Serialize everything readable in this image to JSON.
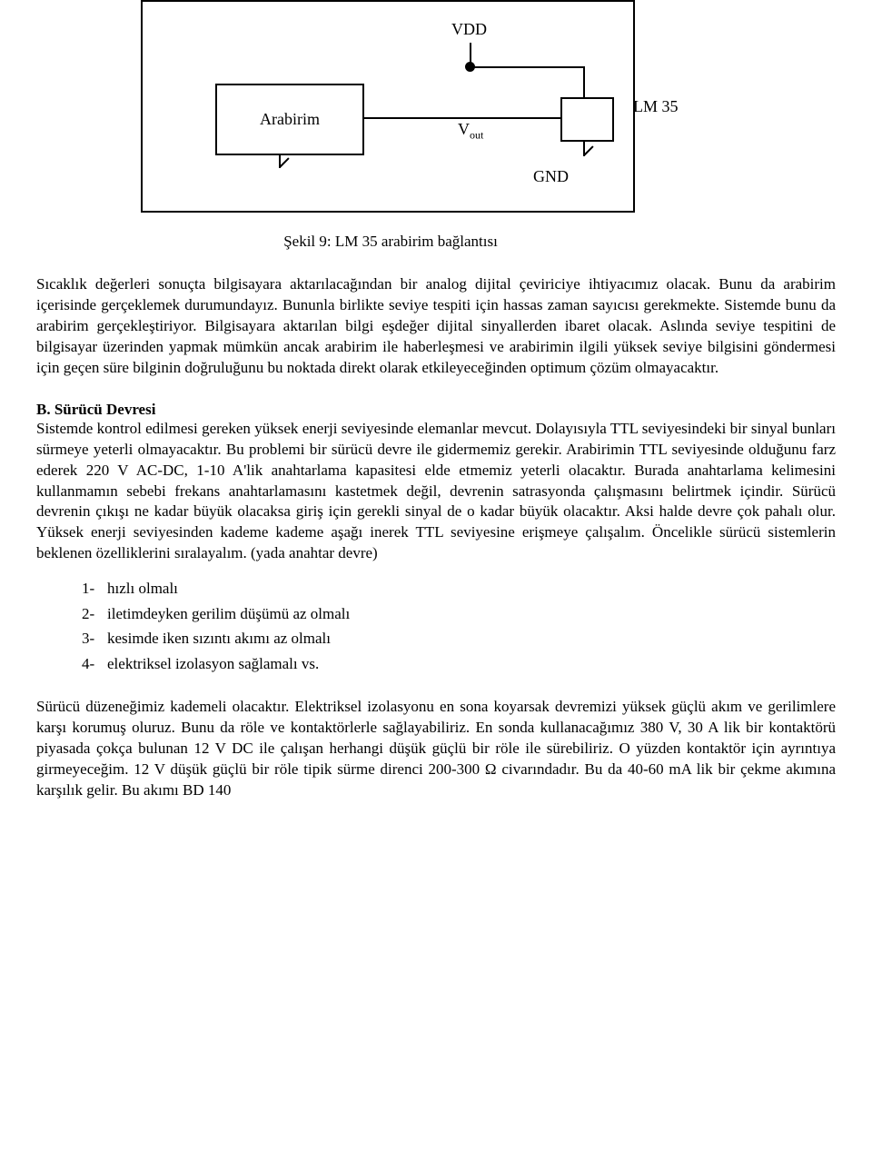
{
  "diagram": {
    "vdd": "VDD",
    "arabirim": "Arabirim",
    "vout_base": "V",
    "vout_sub": "out",
    "lm35": "LM 35",
    "gnd": "GND"
  },
  "caption": "Şekil 9: LM 35 arabirim bağlantısı",
  "para1": "Sıcaklık değerleri sonuçta bilgisayara aktarılacağından bir analog dijital çeviriciye ihtiyacımız olacak. Bunu da arabirim içerisinde gerçeklemek durumundayız. Bununla birlikte seviye tespiti için hassas zaman sayıcısı gerekmekte. Sistemde bunu da arabirim gerçekleştiriyor. Bilgisayara aktarılan bilgi eşdeğer dijital sinyallerden ibaret olacak. Aslında seviye tespitini de bilgisayar üzerinden yapmak mümkün ancak arabirim ile haberleşmesi ve arabirimin ilgili yüksek seviye bilgisini göndermesi için geçen süre bilginin doğruluğunu bu noktada direkt olarak etkileyeceğinden optimum çözüm olmayacaktır.",
  "section_b_title": "B. Sürücü Devresi",
  "para2": "Sistemde kontrol edilmesi gereken yüksek enerji seviyesinde elemanlar mevcut. Dolayısıyla TTL seviyesindeki bir sinyal bunları sürmeye yeterli olmayacaktır. Bu problemi bir sürücü devre ile gidermemiz gerekir. Arabirimin TTL seviyesinde olduğunu farz ederek 220 V AC-DC, 1-10 A'lik anahtarlama kapasitesi elde etmemiz yeterli olacaktır. Burada anahtarlama kelimesini kullanmamın sebebi frekans anahtarlamasını kastetmek değil, devrenin satrasyonda çalışmasını belirtmek içindir. Sürücü devrenin çıkışı ne kadar büyük olacaksa giriş için gerekli sinyal de o kadar büyük olacaktır. Aksi halde devre çok pahalı olur. Yüksek enerji seviyesinden kademe kademe aşağı inerek TTL seviyesine erişmeye çalışalım. Öncelikle sürücü sistemlerin beklenen özelliklerini sıralayalım. (yada anahtar devre)",
  "list": {
    "n1": "1-",
    "t1": "hızlı olmalı",
    "n2": "2-",
    "t2": "iletimdeyken gerilim düşümü az olmalı",
    "n3": "3-",
    "t3": "kesimde iken sızıntı akımı az olmalı",
    "n4": "4-",
    "t4": "elektriksel izolasyon sağlamalı vs."
  },
  "para3": "Sürücü düzeneğimiz kademeli olacaktır. Elektriksel izolasyonu en sona koyarsak devremizi yüksek güçlü akım ve gerilimlere karşı korumuş oluruz. Bunu da röle ve kontaktörlerle sağlayabiliriz. En sonda kullanacağımız 380 V, 30 A lik bir kontaktörü piyasada çokça bulunan 12 V DC ile çalışan herhangi düşük güçlü bir röle ile sürebiliriz. O yüzden kontaktör için ayrıntıya girmeyeceğim. 12 V düşük güçlü bir röle tipik sürme direnci 200-300 Ω civarındadır. Bu da 40-60 mA lik bir çekme akımına karşılık gelir. Bu akımı BD 140"
}
